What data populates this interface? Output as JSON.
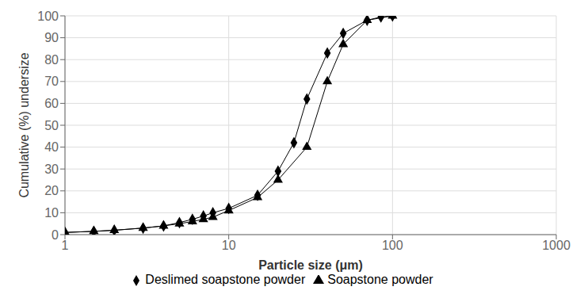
{
  "chart_data": {
    "type": "line",
    "xlabel": "Particle size (μm)",
    "ylabel": "Cumulative (%) undersize",
    "log": "x",
    "xlim": [
      1,
      1000
    ],
    "ylim": [
      0,
      100
    ],
    "xticks": [
      1,
      10,
      100,
      1000
    ],
    "yticks": [
      0,
      10,
      20,
      30,
      40,
      50,
      60,
      70,
      80,
      90,
      100
    ],
    "grid": true,
    "legend": "bottom",
    "series": [
      {
        "name": "Soapstone powder",
        "color": "#000000",
        "marker": "triangle",
        "x": [
          1.0,
          1.5,
          2.0,
          3.0,
          4.0,
          5.0,
          6.0,
          7.0,
          8.0,
          10.0,
          15.0,
          20.0,
          30.0,
          40.0,
          50.0,
          70.0,
          100.0
        ],
        "values": [
          1.0,
          1.5,
          2.0,
          3.0,
          4.0,
          5.0,
          6.0,
          7.0,
          8.0,
          11.0,
          17.0,
          25.0,
          40.0,
          70.0,
          87.0,
          98.0,
          100.0
        ]
      },
      {
        "name": "Deslimed soapstone powder",
        "color": "#000000",
        "marker": "diamond",
        "x": [
          1.0,
          1.5,
          2.0,
          3.0,
          4.0,
          5.0,
          6.0,
          7.0,
          8.0,
          10.0,
          15.0,
          20.0,
          25.0,
          30.0,
          40.0,
          50.0,
          70.0,
          85.0,
          100.0
        ],
        "values": [
          1.0,
          1.5,
          2.0,
          3.0,
          4.0,
          5.5,
          7.0,
          8.5,
          10.0,
          12.0,
          18.0,
          29.0,
          42.0,
          62.0,
          83.0,
          92.0,
          98.0,
          99.5,
          100.0
        ]
      }
    ]
  }
}
